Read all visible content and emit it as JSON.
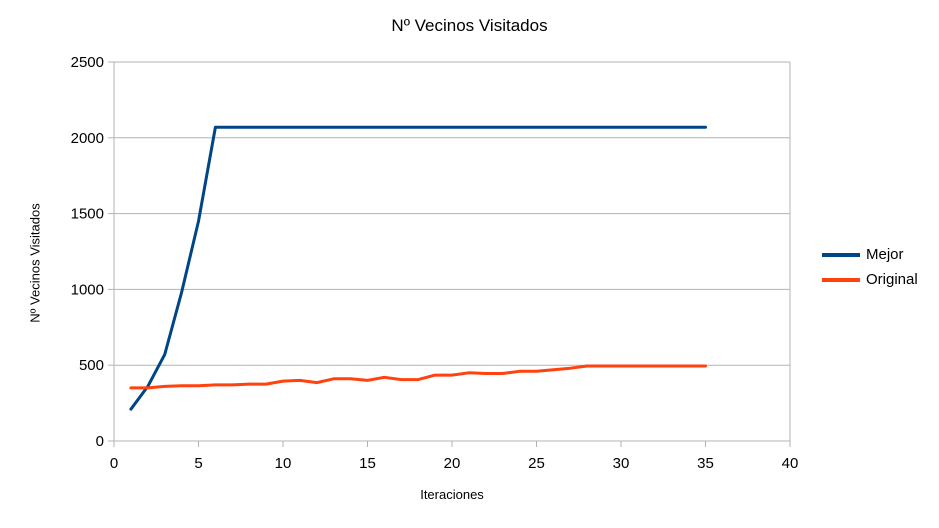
{
  "chart_data": {
    "type": "line",
    "title": "Nº Vecinos Visitados",
    "xlabel": "Iteraciones",
    "ylabel": "Nº Vecinos Visitados",
    "xlim": [
      0,
      40
    ],
    "ylim": [
      0,
      2500
    ],
    "xticks": [
      0,
      5,
      10,
      15,
      20,
      25,
      30,
      35,
      40
    ],
    "yticks": [
      0,
      500,
      1000,
      1500,
      2000,
      2500
    ],
    "grid": true,
    "legend_position": "right",
    "x": [
      1,
      2,
      3,
      4,
      5,
      6,
      7,
      8,
      9,
      10,
      11,
      12,
      13,
      14,
      15,
      16,
      17,
      18,
      19,
      20,
      21,
      22,
      23,
      24,
      25,
      26,
      27,
      28,
      29,
      30,
      31,
      32,
      33,
      34,
      35
    ],
    "series": [
      {
        "name": "Mejor",
        "color": "#004586",
        "values": [
          210,
          360,
          570,
          980,
          1450,
          2070,
          2070,
          2070,
          2070,
          2070,
          2070,
          2070,
          2070,
          2070,
          2070,
          2070,
          2070,
          2070,
          2070,
          2070,
          2070,
          2070,
          2070,
          2070,
          2070,
          2070,
          2070,
          2070,
          2070,
          2070,
          2070,
          2070,
          2070,
          2070,
          2070
        ]
      },
      {
        "name": "Original",
        "color": "#ff420e",
        "values": [
          350,
          350,
          360,
          365,
          365,
          370,
          370,
          375,
          375,
          395,
          400,
          385,
          410,
          410,
          400,
          420,
          405,
          405,
          435,
          435,
          450,
          445,
          445,
          460,
          460,
          470,
          480,
          495,
          495,
          495,
          495,
          495,
          495,
          495,
          495
        ]
      }
    ]
  }
}
